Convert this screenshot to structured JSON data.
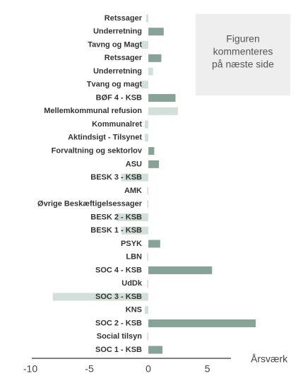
{
  "chart_data": {
    "type": "barh",
    "categories": [
      "Retssager",
      "Underretning",
      "Tavng og Magt",
      "Retssager",
      "Underretning",
      "Tvang og magt",
      "BØF 4 - KSB",
      "Mellemkommunal refusion",
      "Kommunalret",
      "Aktindsigt - Tilsynet",
      "Forvaltning og sektorlov",
      "ASU",
      "BESK 3 - KSB",
      "AMK",
      "Øvrige Beskæftigelsessager",
      "BESK 2 - KSB",
      "BESK 1 - KSB",
      "PSYK",
      "LBN",
      "SOC 4 - KSB",
      "UdDk",
      "SOC 3 - KSB",
      "KNS",
      "SOC 2 - KSB",
      "Social tilsyn",
      "SOC 1 - KSB"
    ],
    "values": [
      -0.2,
      1.3,
      -0.6,
      1.1,
      0.4,
      -0.6,
      2.3,
      2.5,
      -0.3,
      -0.3,
      0.5,
      0.9,
      -2.3,
      -0.1,
      -0.1,
      -2.7,
      -2.3,
      1.0,
      -0.1,
      5.4,
      -0.1,
      -8.1,
      -0.3,
      9.1,
      -0.1,
      1.2
    ],
    "colors": [
      "#d3dfd9",
      "#87a397",
      "#d3dfd9",
      "#87a397",
      "#d3dfd9",
      "#d3dfd9",
      "#87a397",
      "#d3dfd9",
      "#d3dfd9",
      "#d3dfd9",
      "#87a397",
      "#87a397",
      "#d3dfd9",
      "#d3dfd9",
      "#d3dfd9",
      "#d3dfd9",
      "#d3dfd9",
      "#87a397",
      "#d3dfd9",
      "#87a397",
      "#d3dfd9",
      "#d3dfd9",
      "#d3dfd9",
      "#87a397",
      "#d3dfd9",
      "#87a397"
    ],
    "xlim": [
      -10,
      7
    ],
    "xticks": [
      -10,
      -5,
      0,
      5
    ],
    "xlabel": "Årsværk",
    "annotation": [
      "Figuren",
      "kommenteres",
      "på næste side"
    ]
  }
}
